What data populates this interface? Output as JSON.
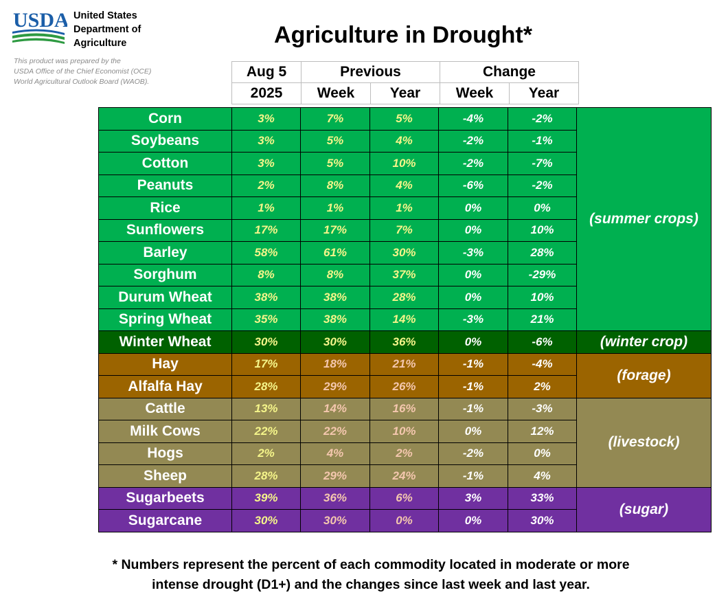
{
  "header": {
    "logo_text": "USDA",
    "agency_lines": [
      "United States",
      "Department of",
      "Agriculture"
    ],
    "credit_lines": [
      "This product was prepared by the",
      "USDA Office of the Chief Economist (OCE)",
      "World Agricultural Outlook Board (WAOB)."
    ],
    "title": "Agriculture in Drought*"
  },
  "colors": {
    "summer": "#00b050",
    "winter": "#006100",
    "forage": "#9b6400",
    "livestock": "#938953",
    "sugar": "#7030a0",
    "current_value_text": "#f5f58a"
  },
  "columns": {
    "current_top": "Aug 5",
    "current_bottom": "2025",
    "previous": "Previous",
    "change": "Change",
    "week": "Week",
    "year": "Year"
  },
  "groups": {
    "summer": "(summer crops)",
    "winter": "(winter crop)",
    "forage": "(forage)",
    "livestock": "(livestock)",
    "sugar": "(sugar)"
  },
  "rows": [
    {
      "name": "Corn",
      "current": "3%",
      "prev_week": "7%",
      "prev_year": "5%",
      "chg_week": "-4%",
      "chg_year": "-2%"
    },
    {
      "name": "Soybeans",
      "current": "3%",
      "prev_week": "5%",
      "prev_year": "4%",
      "chg_week": "-2%",
      "chg_year": "-1%"
    },
    {
      "name": "Cotton",
      "current": "3%",
      "prev_week": "5%",
      "prev_year": "10%",
      "chg_week": "-2%",
      "chg_year": "-7%"
    },
    {
      "name": "Peanuts",
      "current": "2%",
      "prev_week": "8%",
      "prev_year": "4%",
      "chg_week": "-6%",
      "chg_year": "-2%"
    },
    {
      "name": "Rice",
      "current": "1%",
      "prev_week": "1%",
      "prev_year": "1%",
      "chg_week": "0%",
      "chg_year": "0%"
    },
    {
      "name": "Sunflowers",
      "current": "17%",
      "prev_week": "17%",
      "prev_year": "7%",
      "chg_week": "0%",
      "chg_year": "10%"
    },
    {
      "name": "Barley",
      "current": "58%",
      "prev_week": "61%",
      "prev_year": "30%",
      "chg_week": "-3%",
      "chg_year": "28%"
    },
    {
      "name": "Sorghum",
      "current": "8%",
      "prev_week": "8%",
      "prev_year": "37%",
      "chg_week": "0%",
      "chg_year": "-29%"
    },
    {
      "name": "Durum Wheat",
      "current": "38%",
      "prev_week": "38%",
      "prev_year": "28%",
      "chg_week": "0%",
      "chg_year": "10%"
    },
    {
      "name": "Spring Wheat",
      "current": "35%",
      "prev_week": "38%",
      "prev_year": "14%",
      "chg_week": "-3%",
      "chg_year": "21%"
    },
    {
      "name": "Winter Wheat",
      "current": "30%",
      "prev_week": "30%",
      "prev_year": "36%",
      "chg_week": "0%",
      "chg_year": "-6%"
    },
    {
      "name": "Hay",
      "current": "17%",
      "prev_week": "18%",
      "prev_year": "21%",
      "chg_week": "-1%",
      "chg_year": "-4%"
    },
    {
      "name": "Alfalfa Hay",
      "current": "28%",
      "prev_week": "29%",
      "prev_year": "26%",
      "chg_week": "-1%",
      "chg_year": "2%"
    },
    {
      "name": "Cattle",
      "current": "13%",
      "prev_week": "14%",
      "prev_year": "16%",
      "chg_week": "-1%",
      "chg_year": "-3%"
    },
    {
      "name": "Milk Cows",
      "current": "22%",
      "prev_week": "22%",
      "prev_year": "10%",
      "chg_week": "0%",
      "chg_year": "12%"
    },
    {
      "name": "Hogs",
      "current": "2%",
      "prev_week": "4%",
      "prev_year": "2%",
      "chg_week": "-2%",
      "chg_year": "0%"
    },
    {
      "name": "Sheep",
      "current": "28%",
      "prev_week": "29%",
      "prev_year": "24%",
      "chg_week": "-1%",
      "chg_year": "4%"
    },
    {
      "name": "Sugarbeets",
      "current": "39%",
      "prev_week": "36%",
      "prev_year": "6%",
      "chg_week": "3%",
      "chg_year": "33%"
    },
    {
      "name": "Sugarcane",
      "current": "30%",
      "prev_week": "30%",
      "prev_year": "0%",
      "chg_week": "0%",
      "chg_year": "30%"
    }
  ],
  "footnote_lines": [
    "* Numbers represent the percent of each commodity located in moderate or more",
    "intense drought (D1+) and the changes since last week and last year."
  ]
}
